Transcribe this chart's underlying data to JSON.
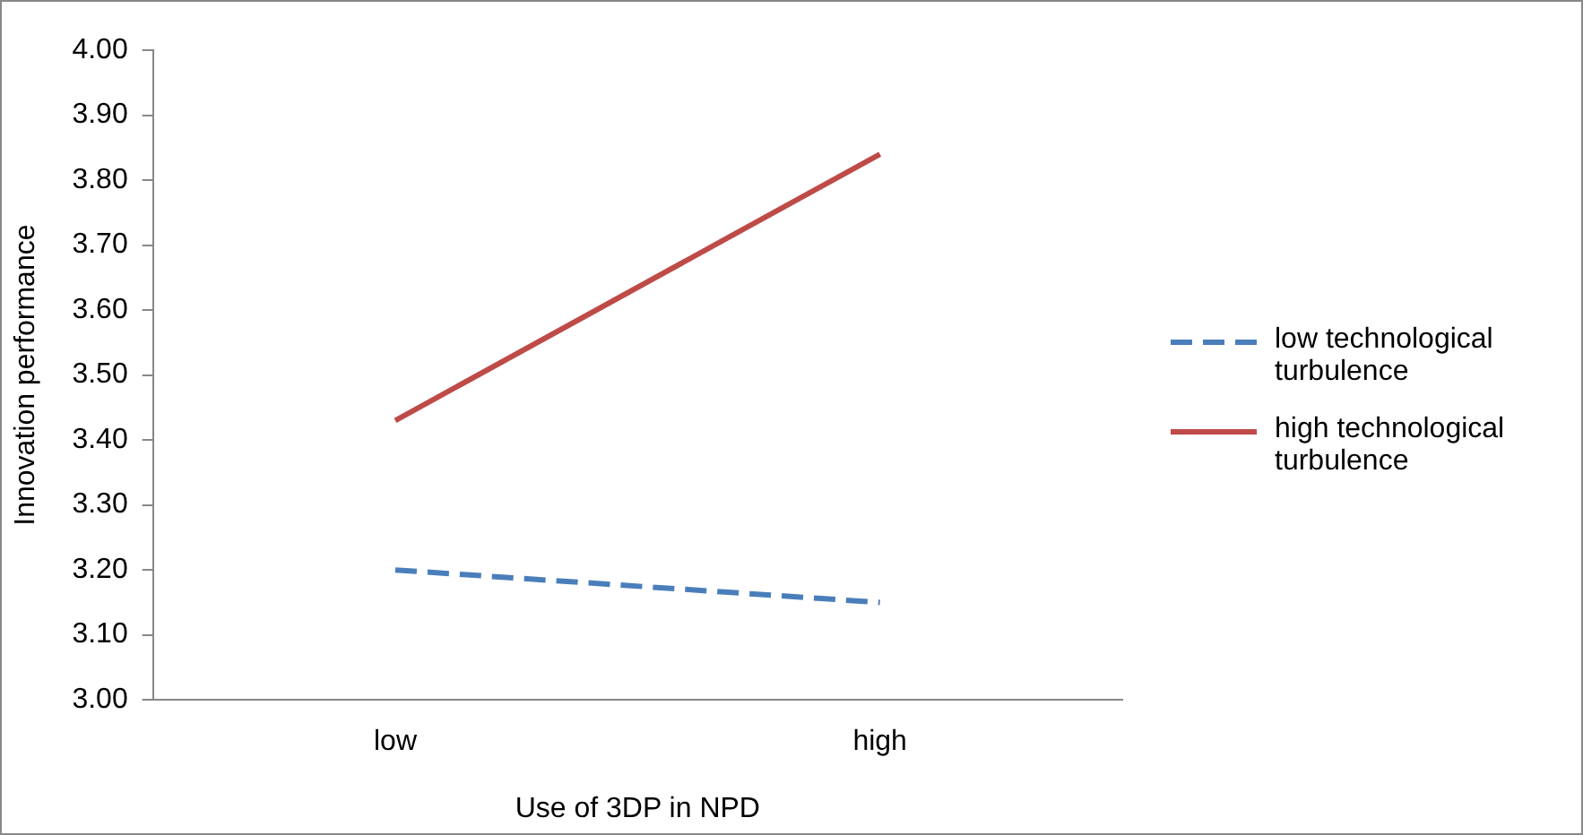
{
  "chart_data": {
    "type": "line",
    "xlabel": "Use of 3DP in NPD",
    "ylabel": "Innovation performance",
    "categories": [
      "low",
      "high"
    ],
    "series": [
      {
        "name": "low technological turbulence",
        "color": "#4a7ebb",
        "values": [
          3.2,
          3.15
        ],
        "line_style": "dashed"
      },
      {
        "name": "high technological turbulence",
        "color": "#be4b48",
        "values": [
          3.43,
          3.84
        ],
        "line_style": "solid"
      }
    ],
    "ylim": [
      3.0,
      4.0
    ],
    "yticks": [
      {
        "value": 3.0,
        "label": "3.00"
      },
      {
        "value": 3.1,
        "label": "3.10"
      },
      {
        "value": 3.2,
        "label": "3.20"
      },
      {
        "value": 3.3,
        "label": "3.30"
      },
      {
        "value": 3.4,
        "label": "3.40"
      },
      {
        "value": 3.5,
        "label": "3.50"
      },
      {
        "value": 3.6,
        "label": "3.60"
      },
      {
        "value": 3.7,
        "label": "3.70"
      },
      {
        "value": 3.8,
        "label": "3.80"
      },
      {
        "value": 3.9,
        "label": "3.90"
      },
      {
        "value": 4.0,
        "label": "4.00"
      }
    ],
    "grid": false,
    "legend": "right",
    "marker": "none"
  }
}
